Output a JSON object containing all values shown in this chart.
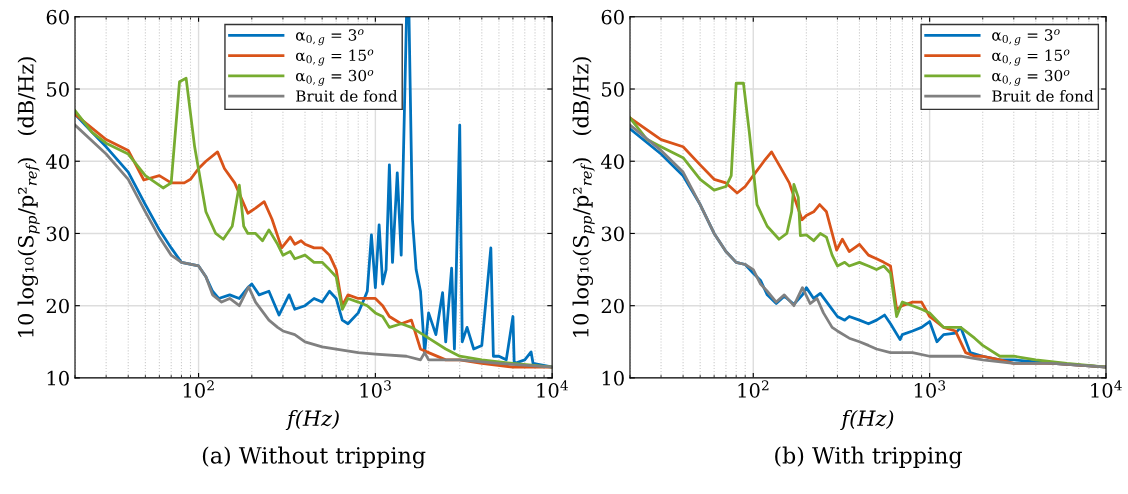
{
  "chart_data": [
    {
      "type": "line",
      "title": "(a) Without tripping",
      "xlabel": "f(Hz)",
      "ylabel": "10 log₁₀(S$_{pp}$/p²$_{ref}$)   (dB/Hz)",
      "log": "x",
      "xlim": [
        20,
        10000
      ],
      "xticks": [
        {
          "value": 100,
          "label": "10$^{2}$"
        },
        {
          "value": 1000,
          "label": "10$^{3}$"
        },
        {
          "value": 10000,
          "label": "10$^{4}$"
        }
      ],
      "ylim": [
        10,
        60
      ],
      "yticks": [
        10,
        20,
        30,
        40,
        50,
        60
      ],
      "grid": true,
      "legend": "top",
      "marker": "none",
      "line_style": "solid",
      "series": [
        {
          "name": "α$_{0,g}$ = 3$^{o}$",
          "color": "#0072bd",
          "x": [
            20,
            25,
            30,
            40,
            50,
            60,
            70,
            80,
            100,
            110,
            120,
            130,
            150,
            170,
            190,
            200,
            220,
            250,
            285,
            325,
            350,
            400,
            450,
            500,
            550,
            600,
            650,
            700,
            800,
            850,
            900,
            950,
            1000,
            1050,
            1100,
            1150,
            1200,
            1250,
            1330,
            1400,
            1500,
            1550,
            1620,
            1700,
            1800,
            1900,
            2000,
            2200,
            2400,
            2500,
            2700,
            2800,
            3000,
            3100,
            3300,
            3600,
            4000,
            4500,
            4650,
            5000,
            5500,
            6000,
            6100,
            7000,
            7600,
            7800,
            10000
          ],
          "values": [
            46.5,
            44,
            42,
            38.5,
            34,
            30.5,
            28,
            26,
            25.5,
            24,
            22,
            21,
            21.5,
            21,
            22.5,
            23,
            21.5,
            22,
            18.7,
            21.5,
            19.5,
            20,
            21,
            20.5,
            22,
            21,
            18,
            17.5,
            19,
            20.5,
            22,
            29.8,
            22.5,
            31.2,
            23,
            25,
            39.5,
            26,
            38.4,
            27,
            60,
            60,
            32,
            25,
            22,
            13.5,
            19,
            16,
            21.8,
            15,
            25.2,
            14,
            45,
            15,
            17,
            14,
            14.5,
            28,
            13,
            13,
            12.5,
            18.5,
            12,
            12.5,
            13.6,
            12,
            11.5
          ]
        },
        {
          "name": "α$_{0,g}$ = 15$^{o}$",
          "color": "#d95319",
          "x": [
            20,
            30,
            40,
            49,
            60,
            70,
            83,
            90,
            100,
            110,
            128,
            140,
            160,
            190,
            210,
            235,
            260,
            295,
            330,
            350,
            380,
            400,
            450,
            500,
            550,
            600,
            650,
            700,
            800,
            900,
            1000,
            1100,
            1200,
            1400,
            1600,
            1800,
            2000,
            2500,
            3000,
            4000,
            6000,
            10000
          ],
          "values": [
            46.5,
            43,
            41.5,
            37.4,
            38,
            37,
            37,
            37.5,
            39,
            40,
            41.3,
            39,
            37,
            32.8,
            33.5,
            34.4,
            32,
            28,
            29.5,
            28.5,
            29,
            28.5,
            28,
            28,
            27,
            25,
            20,
            21.5,
            21,
            21,
            21,
            20,
            18.5,
            17.5,
            18,
            14,
            13.5,
            12.5,
            12.5,
            12,
            11.5,
            11.5
          ]
        },
        {
          "name": "α$_{0,g}$ = 30$^{o}$",
          "color": "#77ac30",
          "x": [
            20,
            25,
            30,
            40,
            50,
            63,
            70,
            78,
            85,
            95,
            110,
            125,
            138,
            155,
            170,
            180,
            190,
            210,
            230,
            250,
            280,
            300,
            330,
            350,
            400,
            450,
            500,
            550,
            600,
            650,
            700,
            800,
            900,
            1000,
            1100,
            1200,
            1400,
            1600,
            2000,
            2500,
            3000,
            4000,
            6000,
            10000
          ],
          "values": [
            47,
            44,
            42.5,
            41,
            38,
            36.3,
            37,
            51,
            51.5,
            42,
            33,
            30,
            29.2,
            31,
            36.7,
            31,
            30,
            30,
            29,
            30.5,
            28.5,
            27,
            27.5,
            26.5,
            27,
            26,
            26,
            25,
            24,
            19.5,
            21,
            20.5,
            20,
            19,
            18.5,
            17,
            17.5,
            17,
            15.5,
            14,
            13,
            12.5,
            12,
            11.5
          ]
        },
        {
          "name": "Bruit de fond",
          "color": "#808080",
          "x": [
            20,
            30,
            40,
            50,
            60,
            70,
            80,
            100,
            110,
            120,
            135,
            150,
            170,
            192,
            210,
            250,
            280,
            300,
            350,
            400,
            500,
            600,
            800,
            1000,
            1500,
            1800,
            1900,
            2000,
            3000,
            5000,
            10000
          ],
          "values": [
            45,
            41,
            37.5,
            33,
            29.5,
            27,
            26,
            25.5,
            24,
            21.5,
            20.5,
            21,
            20,
            22.6,
            20.5,
            18,
            17,
            16.5,
            16,
            15,
            14.3,
            14,
            13.5,
            13.3,
            13,
            12.5,
            13.5,
            12.5,
            12.5,
            12,
            11.5
          ]
        }
      ]
    },
    {
      "type": "line",
      "title": "(b) With tripping",
      "xlabel": "f(Hz)",
      "ylabel": "10 log₁₀(S$_{pp}$/p²$_{ref}$)   (dB/Hz)",
      "log": "x",
      "xlim": [
        20,
        10000
      ],
      "xticks": [
        {
          "value": 100,
          "label": "10$^{2}$"
        },
        {
          "value": 1000,
          "label": "10$^{3}$"
        },
        {
          "value": 10000,
          "label": "10$^{4}$"
        }
      ],
      "ylim": [
        10,
        60
      ],
      "yticks": [
        10,
        20,
        30,
        40,
        50,
        60
      ],
      "grid": true,
      "legend": "top right",
      "marker": "none",
      "line_style": "solid",
      "series": [
        {
          "name": "α$_{0,g}$ = 3$^{o}$",
          "color": "#0072bd",
          "x": [
            20,
            30,
            40,
            50,
            60,
            70,
            80,
            90,
            100,
            110,
            120,
            135,
            150,
            170,
            190,
            200,
            220,
            240,
            270,
            300,
            330,
            350,
            400,
            450,
            500,
            555,
            600,
            680,
            700,
            800,
            900,
            1000,
            1100,
            1200,
            1400,
            1500,
            1700,
            2000,
            2500,
            3000,
            5000,
            10000
          ],
          "values": [
            44.5,
            41,
            38,
            34,
            30,
            27.5,
            26,
            25.7,
            24.5,
            23.5,
            21.5,
            20.3,
            21.3,
            20.2,
            21.5,
            22.5,
            21,
            21.7,
            20,
            18.5,
            18,
            18.5,
            18,
            17.5,
            18,
            18.7,
            17.5,
            15.3,
            16,
            16.5,
            17,
            17.8,
            15,
            16,
            16.2,
            17,
            13.5,
            13,
            12.5,
            12.5,
            12,
            11.5
          ]
        },
        {
          "name": "α$_{0,g}$ = 15$^{o}$",
          "color": "#d95319",
          "x": [
            20,
            30,
            40,
            50,
            60,
            70,
            81,
            90,
            100,
            115,
            127,
            140,
            160,
            189,
            200,
            220,
            238,
            260,
            297,
            320,
            350,
            400,
            450,
            500,
            550,
            600,
            650,
            700,
            800,
            900,
            1000,
            1200,
            1400,
            1600,
            1800,
            2000,
            2500,
            3000,
            5000,
            10000
          ],
          "values": [
            46,
            43,
            42,
            39.5,
            37.5,
            37,
            35.6,
            36.5,
            38,
            40,
            41.3,
            39.5,
            37,
            31.9,
            32.5,
            33,
            34,
            33,
            27.7,
            29.2,
            27.5,
            28.5,
            27,
            26.5,
            26,
            25.5,
            19.5,
            20,
            20.5,
            20.5,
            18.5,
            17,
            16.5,
            13.5,
            13,
            13,
            12.5,
            12,
            12,
            11.5
          ]
        },
        {
          "name": "α$_{0,g}$ = 30$^{o}$",
          "color": "#77ac30",
          "x": [
            20,
            25,
            30,
            40,
            50,
            60,
            70,
            75,
            80,
            88,
            95,
            105,
            120,
            140,
            155,
            165,
            170,
            180,
            185,
            200,
            220,
            240,
            260,
            280,
            300,
            330,
            350,
            400,
            450,
            500,
            550,
            600,
            650,
            700,
            800,
            900,
            1000,
            1200,
            1500,
            1800,
            2000,
            2500,
            3000,
            4000,
            6000,
            10000
          ],
          "values": [
            46,
            43,
            42,
            40.5,
            37.5,
            36,
            36.5,
            38,
            50.8,
            50.8,
            44,
            34,
            31,
            29.2,
            30,
            33,
            36.8,
            35,
            29.7,
            29.8,
            29,
            30,
            29.5,
            27,
            25.5,
            26,
            25.5,
            26,
            25.5,
            25,
            25.5,
            24.5,
            18.5,
            20.5,
            20,
            19.5,
            19,
            17,
            17,
            15.5,
            14.5,
            13,
            13,
            12.5,
            12,
            11.5
          ]
        },
        {
          "name": "Bruit de fond",
          "color": "#808080",
          "x": [
            20,
            30,
            40,
            50,
            60,
            70,
            80,
            90,
            100,
            110,
            120,
            135,
            150,
            170,
            190,
            210,
            230,
            250,
            280,
            300,
            350,
            400,
            450,
            500,
            600,
            800,
            1000,
            1500,
            2000,
            3000,
            5000,
            10000
          ],
          "values": [
            45,
            41.5,
            38.5,
            34,
            30,
            27.5,
            26,
            25.7,
            25,
            23,
            22,
            20.5,
            21.5,
            20,
            22.5,
            20.3,
            21,
            19,
            17,
            16.5,
            15.5,
            15,
            14.5,
            14,
            13.5,
            13.5,
            13,
            13,
            12.5,
            12,
            12,
            11.5
          ]
        }
      ]
    }
  ]
}
